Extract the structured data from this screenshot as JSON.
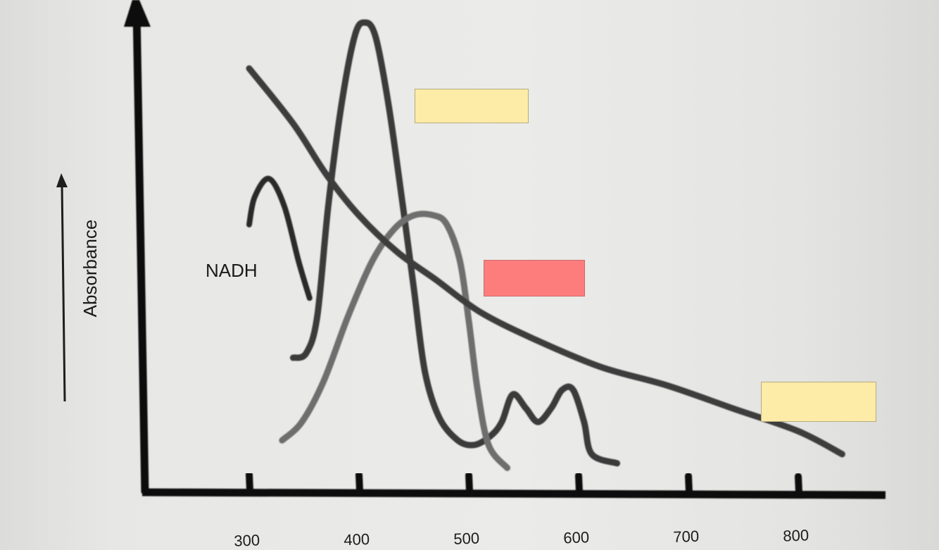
{
  "chart_data": {
    "type": "line",
    "title": "",
    "xlabel": "",
    "ylabel": "Absorbance",
    "x_ticks": [
      300,
      400,
      500,
      600,
      700,
      800
    ],
    "x_tick_labels": [
      "300",
      "400",
      "500",
      "600",
      "700",
      "800"
    ],
    "xlim": [
      200,
      880
    ],
    "y_scale": "relative (unitless)",
    "grid": false,
    "legend": "none",
    "curve_labels": [
      {
        "text": "NADH",
        "series": "nadh"
      }
    ],
    "series": [
      {
        "id": "nadh",
        "name": "NADH",
        "color": "#2a2a2a",
        "points": [
          [
            300,
            0.56
          ],
          [
            305,
            0.62
          ],
          [
            318,
            0.66
          ],
          [
            332,
            0.6
          ],
          [
            345,
            0.48
          ],
          [
            355,
            0.4
          ]
        ]
      },
      {
        "id": "narrow-peak",
        "color": "#3a3a3a",
        "points": [
          [
            340,
            0.27
          ],
          [
            352,
            0.28
          ],
          [
            362,
            0.36
          ],
          [
            372,
            0.6
          ],
          [
            384,
            0.82
          ],
          [
            396,
            0.97
          ],
          [
            405,
            1.0
          ],
          [
            415,
            0.97
          ],
          [
            427,
            0.82
          ],
          [
            440,
            0.6
          ],
          [
            450,
            0.42
          ],
          [
            460,
            0.24
          ],
          [
            473,
            0.14
          ],
          [
            490,
            0.09
          ],
          [
            505,
            0.08
          ],
          [
            520,
            0.1
          ],
          [
            530,
            0.13
          ],
          [
            540,
            0.19
          ],
          [
            552,
            0.16
          ],
          [
            563,
            0.13
          ],
          [
            575,
            0.16
          ],
          [
            585,
            0.2
          ],
          [
            595,
            0.2
          ],
          [
            605,
            0.13
          ],
          [
            612,
            0.06
          ],
          [
            635,
            0.04
          ]
        ]
      },
      {
        "id": "broad-band",
        "color": "#6e6e6e",
        "points": [
          [
            330,
            0.09
          ],
          [
            348,
            0.13
          ],
          [
            368,
            0.22
          ],
          [
            390,
            0.36
          ],
          [
            412,
            0.48
          ],
          [
            432,
            0.55
          ],
          [
            450,
            0.58
          ],
          [
            468,
            0.58
          ],
          [
            480,
            0.56
          ],
          [
            492,
            0.48
          ],
          [
            500,
            0.35
          ],
          [
            508,
            0.2
          ],
          [
            518,
            0.08
          ],
          [
            535,
            0.03
          ]
        ]
      },
      {
        "id": "scatter-decay",
        "color": "#3c3c3c",
        "points": [
          [
            300,
            0.9
          ],
          [
            340,
            0.78
          ],
          [
            370,
            0.67
          ],
          [
            400,
            0.58
          ],
          [
            435,
            0.5
          ],
          [
            470,
            0.44
          ],
          [
            510,
            0.37
          ],
          [
            560,
            0.31
          ],
          [
            620,
            0.25
          ],
          [
            680,
            0.21
          ],
          [
            740,
            0.16
          ],
          [
            800,
            0.11
          ],
          [
            840,
            0.06
          ]
        ]
      }
    ]
  },
  "overlays": [
    {
      "color": "#fdeba8"
    },
    {
      "color": "#fd7d7d"
    },
    {
      "color": "#fdeba8"
    }
  ]
}
